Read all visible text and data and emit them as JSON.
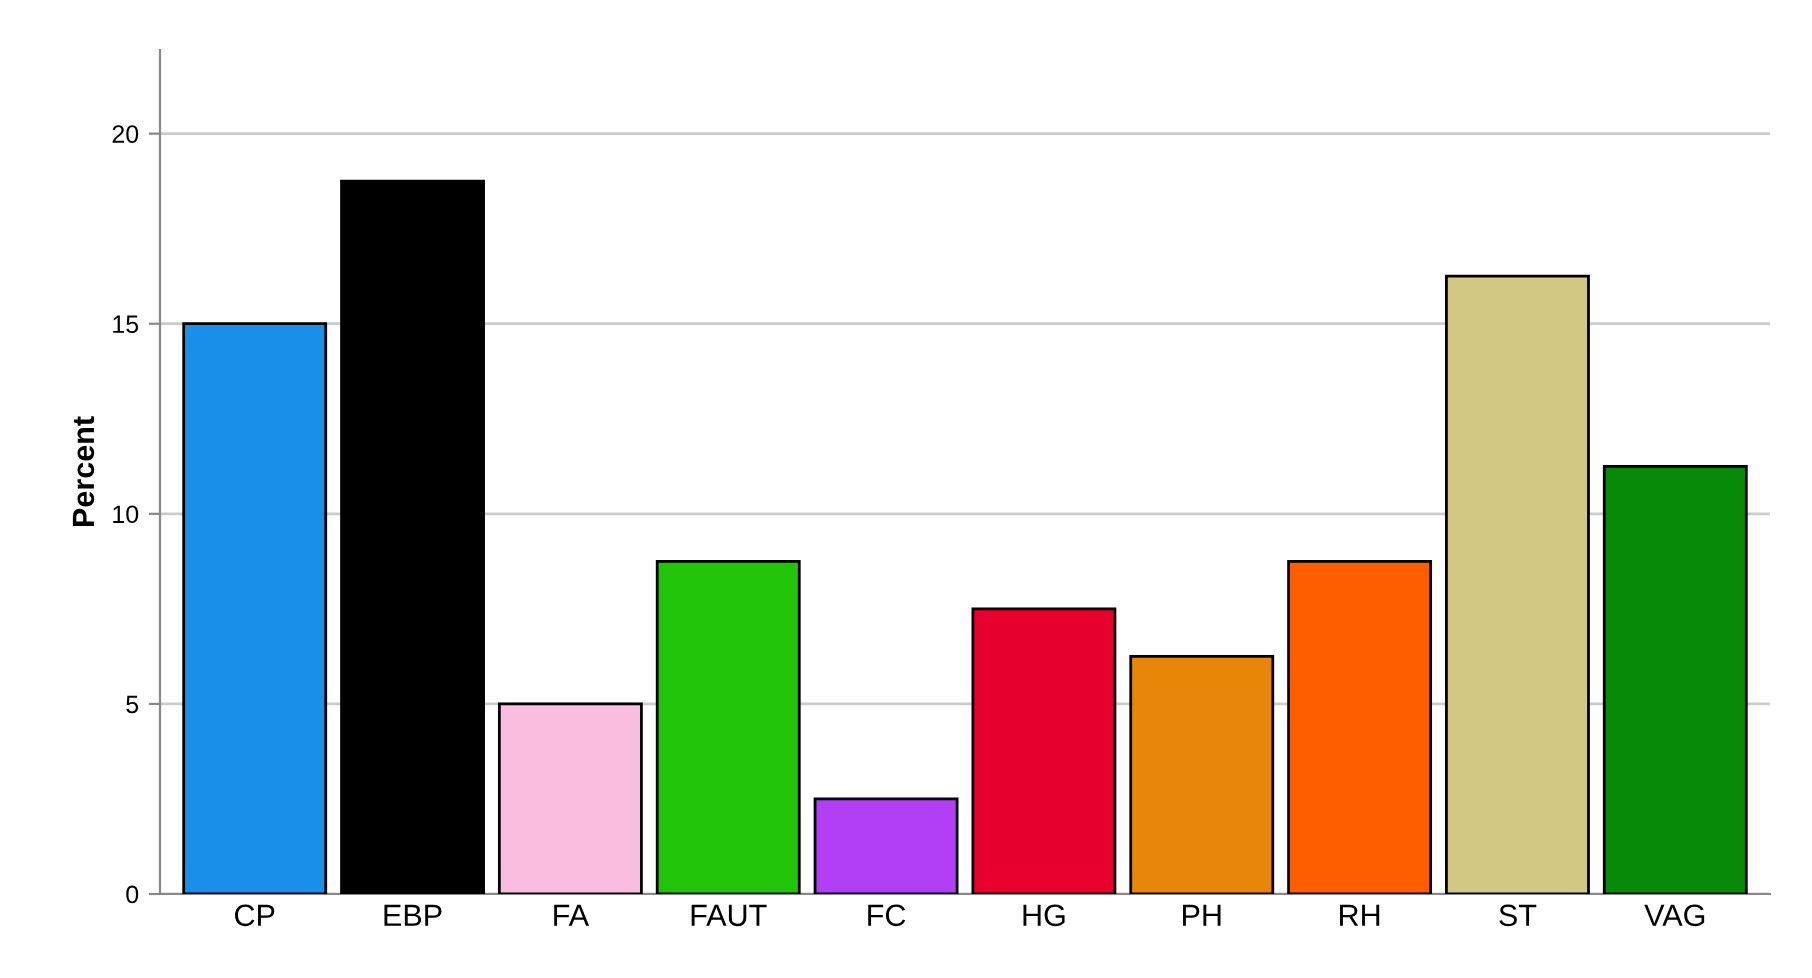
{
  "chart_data": {
    "type": "bar",
    "ylabel": "Percent",
    "categories": [
      "CP",
      "EBP",
      "FA",
      "FAUT",
      "FC",
      "HG",
      "PH",
      "RH",
      "ST",
      "VAG"
    ],
    "values": [
      15,
      18.75,
      5,
      8.75,
      2.5,
      7.5,
      6.25,
      8.75,
      16.25,
      11.25
    ],
    "colors": [
      "#1a90e8",
      "#000000",
      "#f9bde0",
      "#22c40a",
      "#b23ef5",
      "#e8002e",
      "#e8860a",
      "#fe5d00",
      "#d3c984",
      "#078a0a"
    ],
    "ylim": [
      0,
      22.2
    ],
    "yticks": [
      0,
      5,
      10,
      15,
      20
    ],
    "grid": "y"
  }
}
